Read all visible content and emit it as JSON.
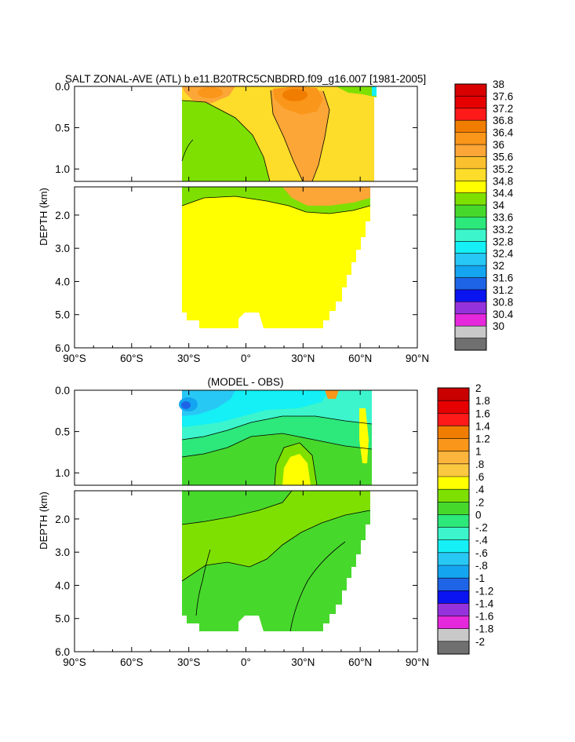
{
  "chart_data": [
    {
      "type": "heatmap",
      "title": "SALT ZONAL-AVE (ATL) b.e11.B20TRC5CNBDRD.f09_g16.007 [1981-2005]",
      "ylabel": "DEPTH (km)",
      "x_ticks": [
        {
          "value": -90,
          "label": "90°S"
        },
        {
          "value": -60,
          "label": "60°S"
        },
        {
          "value": -30,
          "label": "30°S"
        },
        {
          "value": 0,
          "label": "0°"
        },
        {
          "value": 30,
          "label": "30°N"
        },
        {
          "value": 60,
          "label": "60°N"
        },
        {
          "value": 90,
          "label": "90°N"
        }
      ],
      "y_ticks_upper": [
        {
          "value": 0.0,
          "label": "0.0"
        },
        {
          "value": 0.5,
          "label": "0.5"
        },
        {
          "value": 1.0,
          "label": "1.0"
        }
      ],
      "y_ticks_lower": [
        {
          "value": 2.0,
          "label": "2.0"
        },
        {
          "value": 3.0,
          "label": "3.0"
        },
        {
          "value": 4.0,
          "label": "4.0"
        },
        {
          "value": 5.0,
          "label": "5.0"
        },
        {
          "value": 6.0,
          "label": "6.0"
        }
      ],
      "xlim": [
        -90,
        90
      ],
      "ylim_upper": [
        0,
        1.15
      ],
      "ylim_lower": [
        1.15,
        6.0
      ],
      "colorbar_labels": [
        "38",
        "37.6",
        "37.2",
        "36.8",
        "36.4",
        "36",
        "35.6",
        "35.2",
        "34.8",
        "34.4",
        "34",
        "33.6",
        "33.2",
        "32.8",
        "32.4",
        "32",
        "31.6",
        "31.2",
        "30.8",
        "30.4",
        "30"
      ],
      "colorbar_colors": [
        "#d90000",
        "#e60000",
        "#ff1a1a",
        "#f07d00",
        "#fa9619",
        "#fba637",
        "#fbc02d",
        "#fddc2a",
        "#ffff00",
        "#7ee000",
        "#47d82c",
        "#2de87a",
        "#3cf5cc",
        "#14f0f5",
        "#28c8f5",
        "#14a5f0",
        "#1e64e6",
        "#0a14f0",
        "#9632dc",
        "#e628dc",
        "#c8c8c8",
        "#707070"
      ]
    },
    {
      "type": "heatmap",
      "title": "(MODEL - OBS)",
      "ylabel": "DEPTH (km)",
      "x_ticks": [
        {
          "value": -90,
          "label": "90°S"
        },
        {
          "value": -60,
          "label": "60°S"
        },
        {
          "value": -30,
          "label": "30°S"
        },
        {
          "value": 0,
          "label": "0°"
        },
        {
          "value": 30,
          "label": "30°N"
        },
        {
          "value": 60,
          "label": "60°N"
        },
        {
          "value": 90,
          "label": "90°N"
        }
      ],
      "y_ticks_upper": [
        {
          "value": 0.0,
          "label": "0.0"
        },
        {
          "value": 0.5,
          "label": "0.5"
        },
        {
          "value": 1.0,
          "label": "1.0"
        }
      ],
      "y_ticks_lower": [
        {
          "value": 2.0,
          "label": "2.0"
        },
        {
          "value": 3.0,
          "label": "3.0"
        },
        {
          "value": 4.0,
          "label": "4.0"
        },
        {
          "value": 5.0,
          "label": "5.0"
        },
        {
          "value": 6.0,
          "label": "6.0"
        }
      ],
      "xlim": [
        -90,
        90
      ],
      "ylim_upper": [
        0,
        1.15
      ],
      "ylim_lower": [
        1.15,
        6.0
      ],
      "colorbar_labels": [
        "2",
        "1.8",
        "1.6",
        "1.4",
        "1.2",
        "1",
        ".8",
        ".6",
        ".4",
        ".2",
        "0",
        "-.2",
        "-.4",
        "-.6",
        "-.8",
        "-1",
        "-1.2",
        "-1.4",
        "-1.6",
        "-1.8",
        "-2"
      ],
      "colorbar_colors": [
        "#c80000",
        "#e60000",
        "#ff1a1a",
        "#f07d00",
        "#fa9619",
        "#fbb43c",
        "#fbc841",
        "#ffff00",
        "#7ee000",
        "#47d82c",
        "#2de87a",
        "#3cf5cc",
        "#14f0f5",
        "#28c8f5",
        "#14a5f0",
        "#1e64e6",
        "#0a14f0",
        "#9632dc",
        "#e628dc",
        "#c8c8c8",
        "#707070"
      ]
    }
  ]
}
